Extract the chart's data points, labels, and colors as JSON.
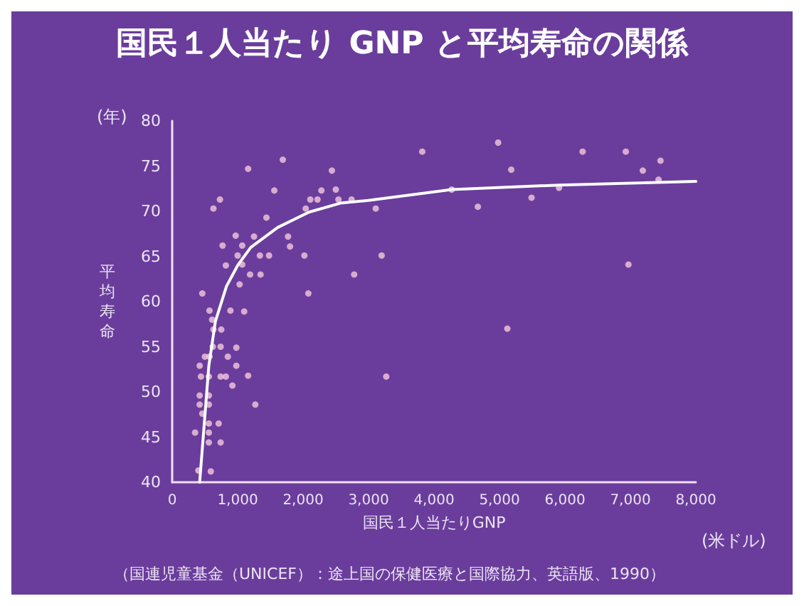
{
  "chart_data": {
    "type": "scatter",
    "title": "国民１人当たり GNP と平均寿命の関係",
    "xlabel": "国民１人当たりGNP",
    "ylabel": "平均寿命",
    "annotations": [
      "(年)",
      "(米ドル)",
      "（国連児童基金（UNICEF）：途上国の保健医療と国際協力、英語版、1990）"
    ],
    "xlim": [
      0,
      8000
    ],
    "ylim": [
      40,
      80
    ],
    "xticks": [
      0,
      {
        "value": 1000,
        "label": "1,000"
      },
      {
        "value": 2000,
        "label": "2,000"
      },
      {
        "value": 3000,
        "label": "3,000"
      },
      {
        "value": 4000,
        "label": "4,000"
      },
      {
        "value": 5000,
        "label": "5,000"
      },
      {
        "value": 6000,
        "label": "6,000"
      },
      {
        "value": 7000,
        "label": "7,000"
      },
      {
        "value": 8000,
        "label": "8,000"
      }
    ],
    "yticks": [
      40,
      45,
      50,
      55,
      60,
      65,
      70,
      75,
      80
    ],
    "grid": false,
    "marker": "circle",
    "series": [
      {
        "color": "#f4c8dc",
        "x": [
          1160,
          1690,
          730,
          630,
          1560,
          1440,
          2440,
          2500,
          2280,
          2220,
          2110,
          2040,
          2540,
          2740,
          3110,
          3200,
          2780,
          2080,
          2020,
          1770,
          1800,
          1480,
          1340,
          1350,
          1190,
          1250,
          970,
          1070,
          1000,
          1070,
          820,
          770,
          1030,
          1100,
          890,
          460,
          570,
          610,
          750,
          630,
          620,
          740,
          980,
          850,
          980,
          1160,
          740,
          820,
          920,
          1270,
          420,
          440,
          560,
          500,
          570,
          420,
          560,
          420,
          560,
          460,
          560,
          350,
          560,
          560,
          710,
          740,
          400,
          590,
          3820,
          4980,
          5180,
          4270,
          4670,
          5490,
          5910,
          6270,
          6930,
          7190,
          7460,
          7430,
          6970,
          5120,
          3270
        ],
        "values": [
          74.7,
          75.7,
          71.3,
          70.3,
          72.3,
          69.3,
          74.5,
          72.4,
          72.3,
          71.3,
          71.3,
          70.3,
          71.3,
          71.3,
          70.3,
          65.1,
          63.0,
          60.9,
          65.1,
          67.2,
          66.1,
          65.1,
          65.1,
          63.0,
          63.0,
          67.2,
          67.3,
          66.2,
          65.1,
          64.1,
          64.0,
          66.2,
          61.9,
          58.9,
          59.0,
          60.9,
          59.0,
          58.0,
          56.9,
          56.9,
          55.0,
          55.0,
          54.9,
          53.9,
          52.9,
          51.8,
          51.7,
          51.7,
          50.7,
          48.6,
          52.9,
          51.7,
          51.7,
          53.9,
          53.9,
          49.6,
          49.6,
          48.6,
          48.6,
          47.6,
          46.5,
          45.5,
          45.5,
          44.4,
          46.5,
          44.4,
          41.3,
          41.2,
          76.6,
          77.6,
          74.6,
          72.4,
          70.5,
          71.5,
          72.6,
          76.6,
          76.6,
          74.5,
          75.6,
          73.5,
          64.1,
          57.0,
          51.7
        ]
      },
      {
        "type": "line",
        "color": "#ffffff",
        "marker": "none",
        "line_style": "solid",
        "x": [
          420,
          560,
          660,
          830,
          1000,
          1200,
          1610,
          2090,
          2570,
          3000,
          4270,
          5910,
          8000
        ],
        "values": [
          40,
          52.9,
          57.8,
          61.7,
          64,
          66,
          68.2,
          69.9,
          70.9,
          71.2,
          72.4,
          72.9,
          73.3
        ]
      }
    ]
  }
}
